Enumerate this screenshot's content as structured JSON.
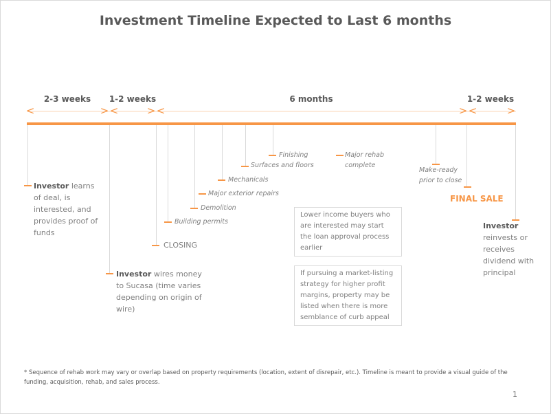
{
  "title": "Investment Timeline Expected to Last 6 months",
  "periods": [
    "2-3 weeks",
    "1-2 weeks",
    "6 months",
    "1-2 weeks"
  ],
  "milestones": {
    "investor_learns": {
      "bold": "Investor",
      "text": " learns of deal, is interested, and provides proof of funds"
    },
    "investor_wires": {
      "bold": "Investor",
      "text": " wires money to Sucasa (time varies depending on origin of wire)"
    },
    "closing": "CLOSING",
    "building_permits": "Building permits",
    "demolition": "Demolition",
    "major_exterior": "Major exterior repairs",
    "mechanicals": "Mechanicals",
    "surfaces": "Surfaces and floors",
    "finishing": "Finishing",
    "major_rehab": "Major rehab complete",
    "make_ready": "Make-ready prior to close",
    "final_sale": "FINAL SALE",
    "investor_reinvests": {
      "bold": "Investor",
      "text": " reinvests or receives dividend with principal"
    }
  },
  "notes": [
    "Lower income buyers who are interested may start the loan approval process earlier",
    "If pursuing a market-listing strategy for higher profit margins, property may be listed when there is more semblance of curb appeal"
  ],
  "footnote": "* Sequence of rehab work may vary or overlap based on property requirements (location, extent of disrepair, etc.).  Timeline is meant to provide a visual guide of the funding, acquisition, rehab, and sales process.",
  "page_number": "1",
  "colors": {
    "accent": "#f79646",
    "text": "#7f7f7f",
    "heading": "#595959"
  }
}
